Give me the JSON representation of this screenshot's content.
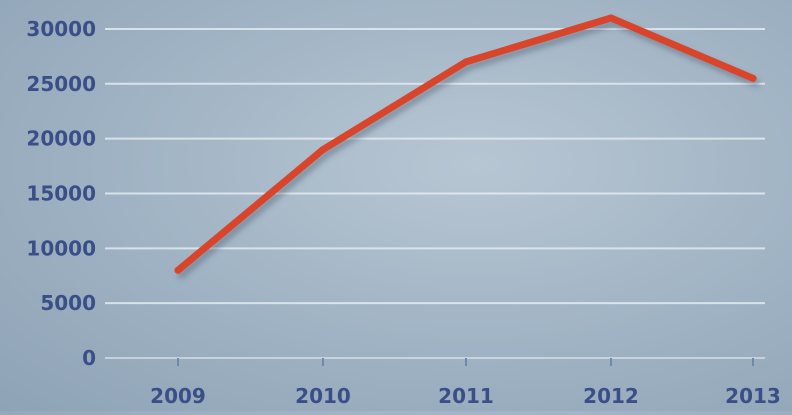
{
  "chart_data": {
    "type": "line",
    "title": "",
    "xlabel": "",
    "ylabel": "",
    "categories": [
      "2009",
      "2010",
      "2011",
      "2012",
      "2013"
    ],
    "series": [
      {
        "values": [
          8000,
          19000,
          27000,
          31000,
          25500
        ]
      }
    ],
    "ylim": [
      0,
      31000
    ],
    "yticks": [
      0,
      5000,
      10000,
      15000,
      20000,
      25000,
      30000
    ],
    "ytick_labels": [
      "0",
      "5000",
      "10000",
      "15000",
      "20000",
      "25000",
      "30000"
    ],
    "grid": true,
    "legend": "none",
    "colors": {
      "line": "#d9452c",
      "tick_label": "#3a4f87",
      "grid": "#e4eaf0",
      "axis": "#7189a8"
    }
  }
}
